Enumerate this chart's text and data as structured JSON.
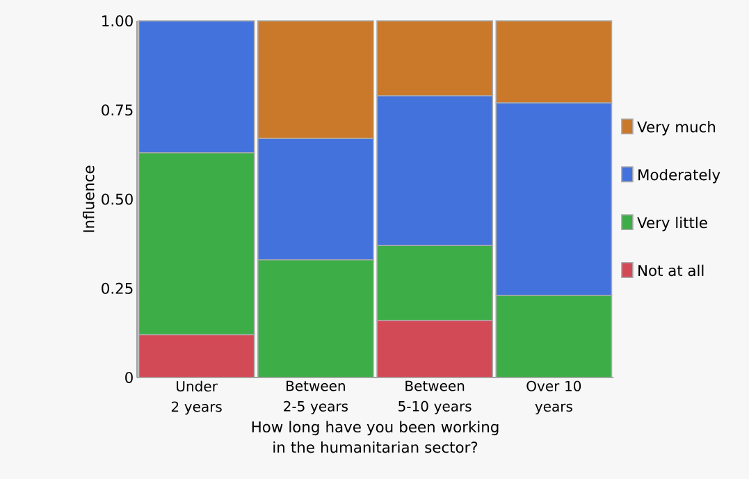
{
  "chart_data": {
    "type": "bar",
    "stacked": true,
    "xlabel": "How long have you been working in the humanitarian sector?",
    "ylabel": "Influence",
    "categories": [
      "Under 2 years",
      "Between 2-5 years",
      "Between 5-10 years",
      "Over 10 years"
    ],
    "series": [
      {
        "name": "Not at all",
        "color": "#d34a57",
        "values": [
          0.12,
          0,
          0.16,
          0
        ]
      },
      {
        "name": "Very little",
        "color": "#3dad47",
        "values": [
          0.51,
          0.33,
          0.21,
          0.23
        ]
      },
      {
        "name": "Moderately",
        "color": "#4372dc",
        "values": [
          0.37,
          0.34,
          0.42,
          0.54
        ]
      },
      {
        "name": "Very much",
        "color": "#ca7829",
        "values": [
          0,
          0.33,
          0.21,
          0.23
        ]
      }
    ],
    "ylim": [
      0,
      1
    ],
    "yticks": [
      0,
      {
        "value": 0.25,
        "label": "0.25"
      },
      {
        "value": 0.5,
        "label": "0.50"
      },
      {
        "value": 0.75,
        "label": "0.75"
      },
      {
        "value": 1,
        "label": "1.00"
      }
    ],
    "grid": false,
    "legend": "right"
  }
}
